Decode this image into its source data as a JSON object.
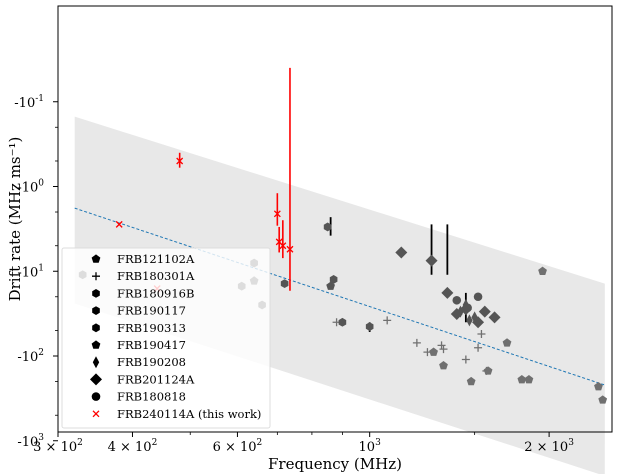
{
  "chart_data": {
    "type": "scatter",
    "title": "",
    "xlabel": "Frequency (MHz)",
    "ylabel": "Drift rate  (MHz ms⁻¹)",
    "x_scale": "log",
    "y_scale": "symlog-negative",
    "xlim": [
      300,
      2550
    ],
    "x_ticks": [
      {
        "value": 300,
        "base": "3 × 10",
        "exp": "2"
      },
      {
        "value": 400,
        "base": "4 × 10",
        "exp": "2"
      },
      {
        "value": 600,
        "base": "6 × 10",
        "exp": "2"
      },
      {
        "value": 1000,
        "base": "10",
        "exp": "3"
      },
      {
        "value": 2000,
        "base": "2 × 10",
        "exp": "3"
      }
    ],
    "y_ticks": [
      {
        "value": -0.1,
        "base": "-10",
        "exp": "-1"
      },
      {
        "value": -1,
        "base": "-10",
        "exp": "0"
      },
      {
        "value": -10,
        "base": "-10",
        "exp": "1"
      },
      {
        "value": -100,
        "base": "-10",
        "exp": "2"
      },
      {
        "value": -1000,
        "base": "-10",
        "exp": "3"
      }
    ],
    "band": {
      "upper": [
        [
          320,
          -0.15
        ],
        [
          2480,
          -14
        ]
      ],
      "lower": [
        [
          320,
          -24
        ],
        [
          2480,
          -2600
        ]
      ],
      "color": "#e8e8e8"
    },
    "fit_line": {
      "points": [
        [
          320,
          -1.8
        ],
        [
          2480,
          -220
        ]
      ],
      "color": "#1f77b4",
      "style": "dashed"
    },
    "legend": {
      "position": "lower-left",
      "frame": true
    },
    "series": [
      {
        "name": "FRB121102A",
        "marker": "pentagon",
        "color": "#707070",
        "points": [
          [
            1280,
            -90
          ],
          [
            1330,
            -130
          ],
          [
            1480,
            -200
          ],
          [
            1580,
            -150
          ],
          [
            1700,
            -70
          ],
          [
            1800,
            -190
          ],
          [
            1850,
            -190
          ],
          [
            1950,
            -10
          ],
          [
            2420,
            -230
          ],
          [
            2460,
            -330
          ]
        ]
      },
      {
        "name": "FRB180301A",
        "marker": "plus",
        "color": "#707070",
        "points": [
          [
            880,
            -40
          ],
          [
            1070,
            -38
          ],
          [
            1200,
            -70
          ],
          [
            1250,
            -90
          ],
          [
            1320,
            -75
          ],
          [
            1330,
            -83
          ],
          [
            1450,
            -110
          ],
          [
            1520,
            -80
          ],
          [
            1540,
            -55
          ],
          [
            1570,
            -150
          ]
        ]
      },
      {
        "name": "FRB180916B",
        "marker": "hexagon",
        "color": "#555555",
        "points": [
          [
            720,
            -14
          ],
          [
            900,
            -40
          ],
          [
            1000,
            -45
          ]
        ]
      },
      {
        "name": "FRB190117",
        "marker": "hexagon",
        "color": "#555555",
        "points": [
          [
            640,
            -8
          ],
          [
            660,
            -25
          ],
          [
            850,
            -3
          ]
        ]
      },
      {
        "name": "FRB190313",
        "marker": "hexagon",
        "color": "#555555",
        "points": [
          [
            330,
            -11
          ],
          [
            610,
            -15
          ],
          [
            870,
            -12.5
          ]
        ]
      },
      {
        "name": "FRB190417",
        "marker": "pentagon",
        "color": "#555555",
        "points": [
          [
            640,
            -13
          ],
          [
            860,
            -15
          ]
        ]
      },
      {
        "name": "FRB190208",
        "marker": "thin-diamond",
        "color": "#555555",
        "points": [
          [
            1450,
            -25
          ],
          [
            1420,
            -30
          ],
          [
            1470,
            -38
          ],
          [
            1500,
            -35
          ]
        ]
      },
      {
        "name": "FRB201124A",
        "marker": "diamond",
        "color": "#555555",
        "points": [
          [
            1130,
            -6
          ],
          [
            1270,
            -7.5
          ],
          [
            1350,
            -18
          ],
          [
            1400,
            -32
          ],
          [
            1450,
            -28
          ],
          [
            1520,
            -40
          ],
          [
            1560,
            -30
          ],
          [
            1620,
            -35
          ]
        ]
      },
      {
        "name": "FRB180818",
        "marker": "circle",
        "color": "#555555",
        "points": [
          [
            1400,
            -22
          ],
          [
            1460,
            -27
          ],
          [
            1520,
            -20
          ]
        ]
      },
      {
        "name": "FRB240114A (this work)",
        "marker": "x",
        "color": "#ff0000",
        "points": [
          [
            380,
            -2.8
          ],
          [
            440,
            -16
          ],
          [
            480,
            -0.5
          ],
          [
            700,
            -2.1
          ],
          [
            705,
            -4.5
          ],
          [
            715,
            -5
          ],
          [
            735,
            -5.5
          ]
        ]
      }
    ],
    "error_bars": [
      {
        "x": 480,
        "y_low": -0.4,
        "y_high": -0.6,
        "color": "#ff0000"
      },
      {
        "x": 700,
        "y_low": -1.2,
        "y_high": -2.9,
        "color": "#ff0000"
      },
      {
        "x": 705,
        "y_low": -3.0,
        "y_high": -6.0,
        "color": "#ff0000"
      },
      {
        "x": 715,
        "y_low": -2.5,
        "y_high": -7.0,
        "color": "#ff0000"
      },
      {
        "x": 735,
        "y_low": -0.06,
        "y_high": -17,
        "color": "#ff0000"
      },
      {
        "x": 860,
        "y_low": -2.3,
        "y_high": -3.8,
        "color": "#000000"
      },
      {
        "x": 1000,
        "y_low": -40,
        "y_high": -52,
        "color": "#000000"
      },
      {
        "x": 1270,
        "y_low": -2.8,
        "y_high": -11,
        "color": "#000000"
      },
      {
        "x": 1350,
        "y_low": -2.8,
        "y_high": -11,
        "color": "#000000"
      },
      {
        "x": 1450,
        "y_low": -18,
        "y_high": -40,
        "color": "#000000"
      }
    ]
  }
}
